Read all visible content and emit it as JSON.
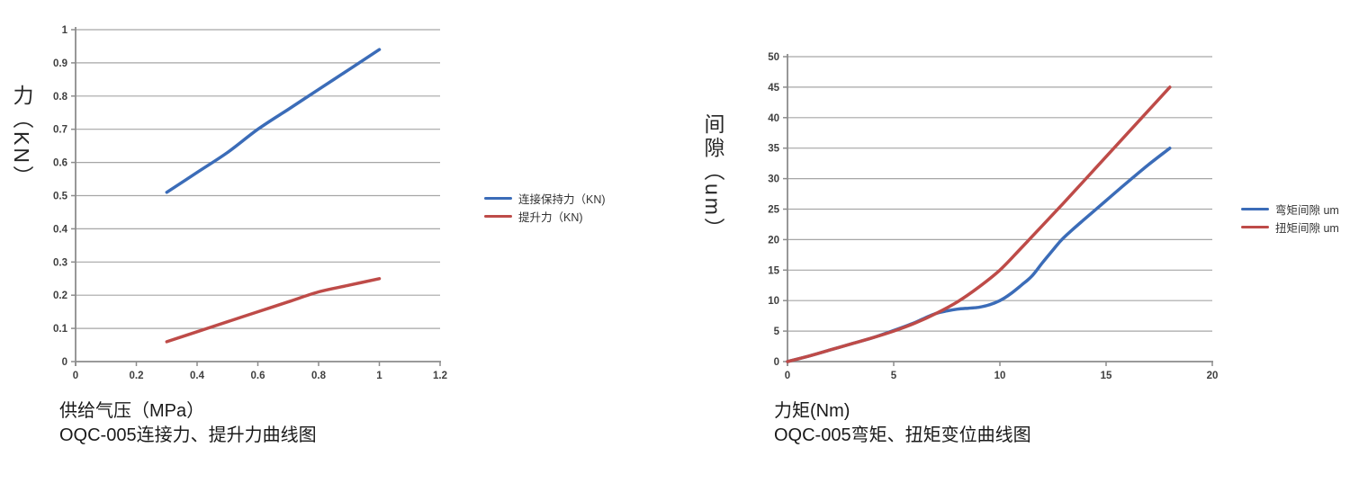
{
  "colors": {
    "background": "#FFFFFF",
    "series_blue": "#3B6CB8",
    "series_red": "#BE4B48",
    "gridline": "#A6A6A6",
    "axis": "#8C8C8C",
    "tick_label": "#404040",
    "title_text": "#1A1A1A",
    "legend_text": "#333333"
  },
  "chart_data": [
    {
      "type": "line",
      "title": "OQC-005连接力、提升力曲线图",
      "xlabel": "供给气压（MPa）",
      "ylabel": "力（KN）",
      "xlim": [
        0,
        1.2
      ],
      "ylim": [
        0,
        1
      ],
      "xticks": [
        "0",
        "0.2",
        "0.4",
        "0.6",
        "0.8",
        "1",
        "1.2"
      ],
      "yticks": [
        "0",
        "0.1",
        "0.2",
        "0.3",
        "0.4",
        "0.5",
        "0.6",
        "0.7",
        "0.8",
        "0.9",
        "1"
      ],
      "grid": "horizontal",
      "legend_position": "right",
      "series": [
        {
          "name": "连接保持力（KN)",
          "color": "#3B6CB8",
          "x": [
            0.3,
            0.4,
            0.5,
            0.6,
            0.7,
            0.8,
            0.9,
            1.0
          ],
          "y": [
            0.51,
            0.57,
            0.63,
            0.7,
            0.76,
            0.82,
            0.88,
            0.94
          ]
        },
        {
          "name": "提升力（KN)",
          "color": "#BE4B48",
          "x": [
            0.3,
            0.4,
            0.5,
            0.6,
            0.7,
            0.8,
            0.9,
            1.0
          ],
          "y": [
            0.06,
            0.09,
            0.12,
            0.15,
            0.18,
            0.21,
            0.23,
            0.25
          ]
        }
      ]
    },
    {
      "type": "line",
      "title": "OQC-005弯矩、扭矩变位曲线图",
      "xlabel": "力矩(Nm)",
      "ylabel": "间隙（um）",
      "xlim": [
        0,
        20
      ],
      "ylim": [
        0,
        50
      ],
      "xticks": [
        "0",
        "5",
        "10",
        "15",
        "20"
      ],
      "yticks": [
        "0",
        "5",
        "10",
        "15",
        "20",
        "25",
        "30",
        "35",
        "40",
        "45",
        "50"
      ],
      "grid": "horizontal",
      "legend_position": "right",
      "series": [
        {
          "name": "弯矩间隙 um",
          "color": "#3B6CB8",
          "x": [
            0,
            1,
            2,
            3,
            4,
            5,
            6,
            6.5,
            7,
            7.5,
            8,
            8.5,
            9,
            9.5,
            10,
            10.5,
            11,
            11.5,
            12,
            12.5,
            13,
            14,
            15,
            16,
            17,
            18
          ],
          "y": [
            0,
            0.9,
            1.9,
            2.9,
            3.9,
            5.1,
            6.4,
            7.2,
            7.9,
            8.3,
            8.6,
            8.75,
            8.9,
            9.3,
            10,
            11.1,
            12.5,
            14,
            16.2,
            18.3,
            20.3,
            23.4,
            26.4,
            29.4,
            32.3,
            35
          ]
        },
        {
          "name": "扭矩间隙 um",
          "color": "#BE4B48",
          "x": [
            0,
            1,
            2,
            3,
            4,
            5,
            6,
            7,
            8,
            9,
            10,
            11,
            12,
            13,
            14,
            15,
            16,
            17,
            18
          ],
          "y": [
            0,
            0.9,
            1.9,
            2.9,
            3.9,
            5,
            6.3,
            7.9,
            9.8,
            12.2,
            15,
            18.6,
            22.3,
            26,
            29.8,
            33.6,
            37.4,
            41.2,
            45
          ]
        }
      ]
    }
  ]
}
